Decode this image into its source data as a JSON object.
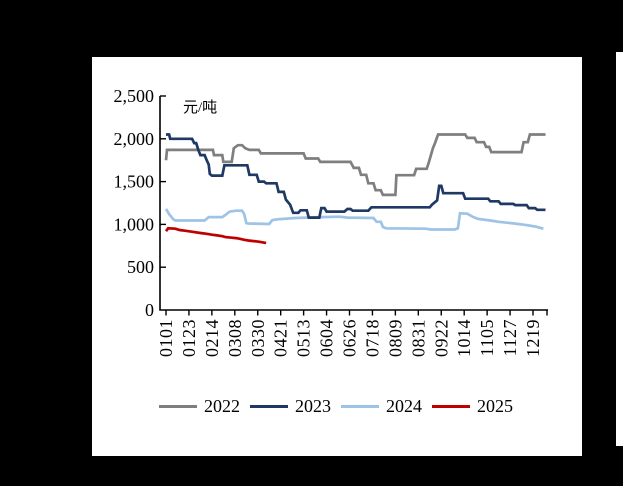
{
  "chart_data": {
    "type": "line",
    "unit": "元/吨",
    "ylim": [
      0,
      2500
    ],
    "grid": false,
    "legend_position": "bottom",
    "legend": [
      "2022",
      "2023",
      "2024",
      "2025"
    ],
    "y_ticks": [
      {
        "value": 0,
        "label": "0"
      },
      {
        "value": 500,
        "label": "500"
      },
      {
        "value": 1000,
        "label": "1,000"
      },
      {
        "value": 1500,
        "label": "1,500"
      },
      {
        "value": 2000,
        "label": "2,000"
      },
      {
        "value": 2500,
        "label": "2,500"
      }
    ],
    "x_tick_labels": [
      "0101",
      "0123",
      "0214",
      "0308",
      "0330",
      "0421",
      "0513",
      "0604",
      "0626",
      "0718",
      "0809",
      "0831",
      "0922",
      "1014",
      "1105",
      "1127",
      "1219"
    ],
    "x_tick_days": [
      1,
      23,
      45,
      67,
      89,
      111,
      133,
      155,
      177,
      199,
      221,
      243,
      265,
      287,
      309,
      331,
      353
    ],
    "series": [
      {
        "name": "2022",
        "color": "#7F7F7F",
        "points": [
          [
            1,
            1750
          ],
          [
            2,
            1870
          ],
          [
            10,
            1870
          ],
          [
            46,
            1870
          ],
          [
            47,
            1810
          ],
          [
            55,
            1810
          ],
          [
            56,
            1730
          ],
          [
            64,
            1730
          ],
          [
            66,
            1890
          ],
          [
            70,
            1925
          ],
          [
            74,
            1925
          ],
          [
            77,
            1890
          ],
          [
            81,
            1870
          ],
          [
            90,
            1870
          ],
          [
            92,
            1830
          ],
          [
            133,
            1830
          ],
          [
            135,
            1770
          ],
          [
            147,
            1770
          ],
          [
            149,
            1730
          ],
          [
            178,
            1730
          ],
          [
            181,
            1660
          ],
          [
            186,
            1660
          ],
          [
            188,
            1580
          ],
          [
            193,
            1580
          ],
          [
            195,
            1480
          ],
          [
            200,
            1480
          ],
          [
            202,
            1400
          ],
          [
            207,
            1400
          ],
          [
            209,
            1345
          ],
          [
            221,
            1345
          ],
          [
            222,
            1575
          ],
          [
            239,
            1575
          ],
          [
            241,
            1650
          ],
          [
            251,
            1650
          ],
          [
            253,
            1720
          ],
          [
            257,
            1890
          ],
          [
            259,
            1950
          ],
          [
            262,
            2050
          ],
          [
            288,
            2050
          ],
          [
            290,
            2010
          ],
          [
            297,
            2010
          ],
          [
            299,
            1960
          ],
          [
            306,
            1960
          ],
          [
            308,
            1905
          ],
          [
            311,
            1905
          ],
          [
            313,
            1845
          ],
          [
            342,
            1845
          ],
          [
            344,
            1960
          ],
          [
            348,
            1960
          ],
          [
            350,
            2050
          ],
          [
            365,
            2050
          ]
        ]
      },
      {
        "name": "2024",
        "color": "#9DC3E6",
        "points": [
          [
            1,
            1180
          ],
          [
            4,
            1120
          ],
          [
            8,
            1060
          ],
          [
            10,
            1045
          ],
          [
            38,
            1045
          ],
          [
            42,
            1085
          ],
          [
            55,
            1085
          ],
          [
            58,
            1110
          ],
          [
            62,
            1150
          ],
          [
            68,
            1160
          ],
          [
            74,
            1160
          ],
          [
            76,
            1120
          ],
          [
            78,
            1015
          ],
          [
            80,
            1010
          ],
          [
            100,
            1005
          ],
          [
            103,
            1050
          ],
          [
            108,
            1060
          ],
          [
            125,
            1075
          ],
          [
            150,
            1085
          ],
          [
            168,
            1090
          ],
          [
            175,
            1080
          ],
          [
            200,
            1075
          ],
          [
            203,
            1030
          ],
          [
            207,
            1030
          ],
          [
            209,
            970
          ],
          [
            212,
            955
          ],
          [
            250,
            950
          ],
          [
            255,
            940
          ],
          [
            278,
            940
          ],
          [
            281,
            955
          ],
          [
            283,
            1130
          ],
          [
            290,
            1125
          ],
          [
            295,
            1090
          ],
          [
            300,
            1065
          ],
          [
            312,
            1045
          ],
          [
            320,
            1030
          ],
          [
            335,
            1010
          ],
          [
            345,
            995
          ],
          [
            355,
            975
          ],
          [
            363,
            950
          ]
        ]
      },
      {
        "name": "2023",
        "color": "#1F3864",
        "points": [
          [
            1,
            2050
          ],
          [
            4,
            2050
          ],
          [
            5,
            2000
          ],
          [
            26,
            2000
          ],
          [
            28,
            1950
          ],
          [
            30,
            1950
          ],
          [
            32,
            1870
          ],
          [
            34,
            1810
          ],
          [
            38,
            1810
          ],
          [
            40,
            1750
          ],
          [
            42,
            1700
          ],
          [
            43,
            1590
          ],
          [
            45,
            1570
          ],
          [
            55,
            1570
          ],
          [
            57,
            1690
          ],
          [
            79,
            1690
          ],
          [
            81,
            1580
          ],
          [
            88,
            1580
          ],
          [
            90,
            1500
          ],
          [
            95,
            1500
          ],
          [
            97,
            1480
          ],
          [
            107,
            1480
          ],
          [
            109,
            1380
          ],
          [
            114,
            1380
          ],
          [
            116,
            1290
          ],
          [
            120,
            1230
          ],
          [
            123,
            1135
          ],
          [
            128,
            1135
          ],
          [
            130,
            1165
          ],
          [
            136,
            1165
          ],
          [
            138,
            1080
          ],
          [
            148,
            1080
          ],
          [
            150,
            1190
          ],
          [
            153,
            1190
          ],
          [
            155,
            1150
          ],
          [
            172,
            1150
          ],
          [
            175,
            1180
          ],
          [
            178,
            1180
          ],
          [
            180,
            1160
          ],
          [
            195,
            1160
          ],
          [
            198,
            1200
          ],
          [
            254,
            1200
          ],
          [
            256,
            1230
          ],
          [
            261,
            1280
          ],
          [
            263,
            1450
          ],
          [
            265,
            1450
          ],
          [
            267,
            1365
          ],
          [
            286,
            1365
          ],
          [
            288,
            1300
          ],
          [
            310,
            1300
          ],
          [
            312,
            1270
          ],
          [
            320,
            1270
          ],
          [
            322,
            1240
          ],
          [
            334,
            1240
          ],
          [
            336,
            1225
          ],
          [
            347,
            1225
          ],
          [
            349,
            1190
          ],
          [
            355,
            1190
          ],
          [
            357,
            1170
          ],
          [
            365,
            1170
          ]
        ]
      },
      {
        "name": "2025",
        "color": "#C00000",
        "points": [
          [
            1,
            920
          ],
          [
            3,
            955
          ],
          [
            10,
            950
          ],
          [
            14,
            935
          ],
          [
            20,
            925
          ],
          [
            28,
            910
          ],
          [
            34,
            900
          ],
          [
            40,
            890
          ],
          [
            45,
            880
          ],
          [
            50,
            872
          ],
          [
            55,
            862
          ],
          [
            58,
            852
          ],
          [
            64,
            845
          ],
          [
            68,
            840
          ],
          [
            72,
            832
          ],
          [
            76,
            820
          ],
          [
            80,
            812
          ],
          [
            85,
            805
          ],
          [
            90,
            798
          ],
          [
            94,
            790
          ],
          [
            97,
            782
          ]
        ]
      }
    ]
  },
  "colors": {
    "background": "#000000",
    "panel": "#FFFFFF",
    "axis": "#000000",
    "series_2022": "#7F7F7F",
    "series_2023": "#1F3864",
    "series_2024": "#9DC3E6",
    "series_2025": "#C00000"
  }
}
